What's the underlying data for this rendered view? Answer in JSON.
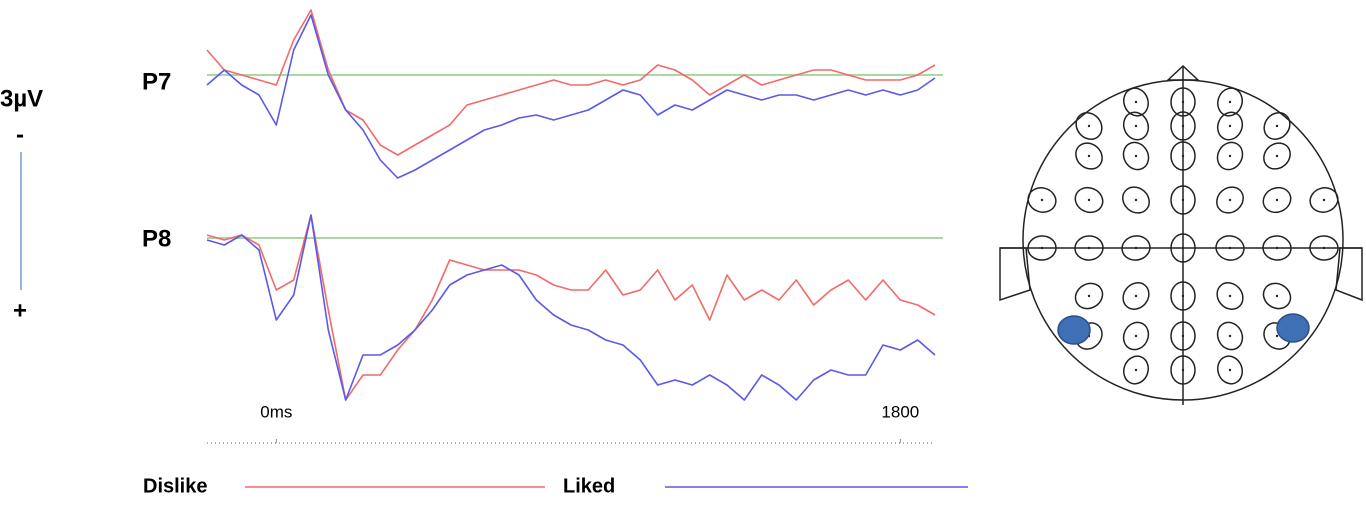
{
  "chart_data": [
    {
      "type": "line",
      "title": "P7",
      "x": [
        -200,
        -150,
        -100,
        -50,
        0,
        50,
        100,
        150,
        200,
        250,
        300,
        350,
        400,
        450,
        500,
        550,
        600,
        650,
        700,
        750,
        800,
        850,
        900,
        950,
        1000,
        1050,
        1100,
        1150,
        1200,
        1250,
        1300,
        1350,
        1400,
        1450,
        1500,
        1550,
        1600,
        1650,
        1700,
        1750,
        1800,
        1850,
        1900
      ],
      "xlim": [
        -200,
        1900
      ],
      "ylim": [
        -1.5,
        2.3
      ],
      "y_inverted": true,
      "zero_line_color": "#a9d9a3",
      "series": [
        {
          "name": "Dislike",
          "color": "#f26a6a",
          "values": [
            -0.5,
            -0.1,
            0,
            0.1,
            0.2,
            -0.7,
            -1.3,
            -0.1,
            0.7,
            0.9,
            1.4,
            1.6,
            1.4,
            1.2,
            1.0,
            0.6,
            0.5,
            0.4,
            0.3,
            0.2,
            0.1,
            0.2,
            0.2,
            0.1,
            0.2,
            0.1,
            -0.2,
            -0.1,
            0.1,
            0.4,
            0.2,
            0,
            0.2,
            0.1,
            0,
            -0.1,
            -0.1,
            0,
            0.1,
            0.1,
            0.1,
            0,
            -0.2
          ]
        },
        {
          "name": "Liked",
          "color": "#5a5ae6",
          "values": [
            0.2,
            -0.1,
            0.2,
            0.4,
            1.0,
            -0.5,
            -1.2,
            0,
            0.7,
            1.1,
            1.7,
            2.06,
            1.9,
            1.7,
            1.5,
            1.3,
            1.1,
            1.0,
            0.86,
            0.8,
            0.9,
            0.8,
            0.7,
            0.5,
            0.3,
            0.4,
            0.8,
            0.6,
            0.7,
            0.5,
            0.3,
            0.4,
            0.5,
            0.4,
            0.4,
            0.5,
            0.4,
            0.3,
            0.4,
            0.3,
            0.4,
            0.3,
            0.06
          ]
        }
      ]
    },
    {
      "type": "line",
      "title": "P8",
      "x": [
        -200,
        -150,
        -100,
        -50,
        0,
        50,
        100,
        150,
        200,
        250,
        300,
        350,
        400,
        450,
        500,
        550,
        600,
        650,
        700,
        750,
        800,
        850,
        900,
        950,
        1000,
        1050,
        1100,
        1150,
        1200,
        1250,
        1300,
        1350,
        1400,
        1450,
        1500,
        1550,
        1600,
        1650,
        1700,
        1750,
        1800,
        1850,
        1900
      ],
      "xlim": [
        -200,
        1900
      ],
      "ylim": [
        -0.7,
        3.5
      ],
      "y_inverted": true,
      "zero_line_color": "#a9d9a3",
      "xticks": [
        {
          "value": 0,
          "label": "0ms"
        },
        1800
      ],
      "series": [
        {
          "name": "Dislike",
          "color": "#f26a6a",
          "values": [
            -0.06,
            0.04,
            -0.06,
            0.14,
            1.04,
            0.84,
            -0.46,
            1.44,
            3.24,
            2.74,
            2.74,
            2.24,
            1.84,
            1.24,
            0.44,
            0.54,
            0.64,
            0.64,
            0.64,
            0.74,
            0.94,
            1.04,
            1.04,
            0.64,
            1.14,
            1.04,
            0.64,
            1.24,
            0.94,
            1.64,
            0.74,
            1.24,
            1.04,
            1.24,
            0.84,
            1.34,
            1.04,
            0.84,
            1.24,
            0.84,
            1.24,
            1.34,
            1.54
          ]
        },
        {
          "name": "Liked",
          "color": "#5a5ae6",
          "values": [
            0.04,
            0.14,
            -0.06,
            0.24,
            1.64,
            1.14,
            -0.46,
            1.84,
            3.24,
            2.34,
            2.34,
            2.14,
            1.84,
            1.44,
            0.94,
            0.74,
            0.64,
            0.54,
            0.74,
            1.24,
            1.54,
            1.74,
            1.84,
            2.04,
            2.14,
            2.44,
            2.94,
            2.84,
            2.94,
            2.74,
            2.94,
            3.24,
            2.74,
            2.94,
            3.24,
            2.84,
            2.64,
            2.74,
            2.74,
            2.14,
            2.24,
            2.04,
            2.34
          ]
        }
      ]
    }
  ],
  "scale_bar": {
    "label": "3µV",
    "value": 3,
    "top": "-",
    "bottom": "+"
  }
}
